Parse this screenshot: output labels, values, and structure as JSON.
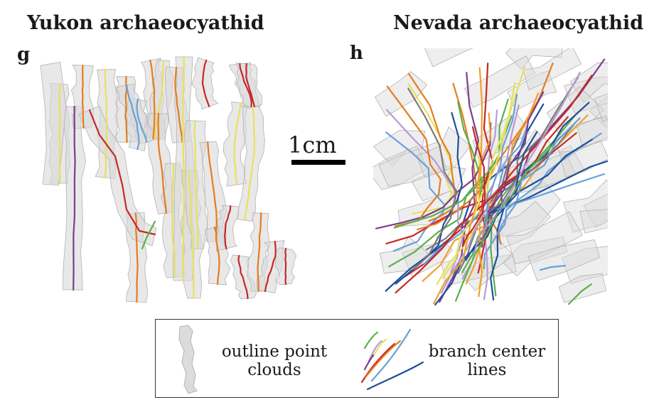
{
  "titles": {
    "left": "Yukon archaeocyathid",
    "right": "Nevada archaeocyathid"
  },
  "panel_labels": {
    "left": "g",
    "right": "h"
  },
  "scale_bar": {
    "label": "1cm"
  },
  "legend": {
    "outline_label_line1": "outline point",
    "outline_label_line2": "clouds",
    "branch_label_line1": "branch center",
    "branch_label_line2": "lines"
  },
  "colors": {
    "outline_fill": "#d9d9d9",
    "outline_stroke": "#b3b3b3",
    "branch": [
      "#1f4e9c",
      "#5ab04a",
      "#6aa0d8",
      "#c62828",
      "#e67c1f",
      "#e8e060",
      "#7b3f8c",
      "#7a7a7a",
      "#b79ccf",
      "#f0a030"
    ]
  }
}
